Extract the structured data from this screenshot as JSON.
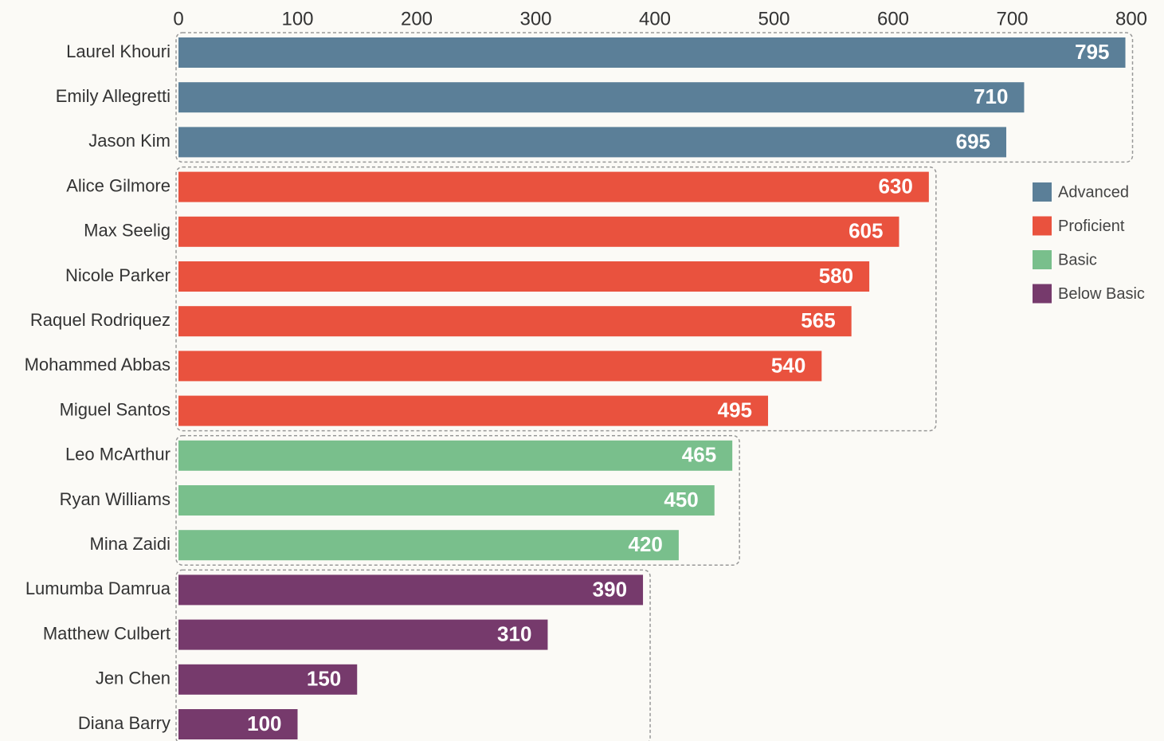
{
  "chart_data": {
    "type": "hbar",
    "categories": [
      "Laurel Khouri",
      "Emily Allegretti",
      "Jason Kim",
      "Alice Gilmore",
      "Max Seelig",
      "Nicole Parker",
      "Raquel Rodriquez",
      "Mohammed Abbas",
      "Miguel Santos",
      "Leo McArthur",
      "Ryan Williams",
      "Mina Zaidi",
      "Lumumba Damrua",
      "Matthew Culbert",
      "Jen Chen",
      "Diana Barry"
    ],
    "series": [
      {
        "name": "Advanced",
        "color": "#5b7f98",
        "values": [
          795,
          710,
          695,
          null,
          null,
          null,
          null,
          null,
          null,
          null,
          null,
          null,
          null,
          null,
          null,
          null
        ]
      },
      {
        "name": "Proficient",
        "color": "#e9523e",
        "values": [
          null,
          null,
          null,
          630,
          605,
          580,
          565,
          540,
          495,
          null,
          null,
          null,
          null,
          null,
          null,
          null
        ]
      },
      {
        "name": "Basic",
        "color": "#79bf8c",
        "values": [
          null,
          null,
          null,
          null,
          null,
          null,
          null,
          null,
          null,
          465,
          450,
          420,
          null,
          null,
          null,
          null
        ]
      },
      {
        "name": "Below Basic",
        "color": "#763a6c",
        "values": [
          null,
          null,
          null,
          null,
          null,
          null,
          null,
          null,
          null,
          null,
          null,
          null,
          390,
          310,
          150,
          100
        ]
      }
    ],
    "xlim": [
      0,
      800
    ],
    "xticks": [
      0,
      100,
      200,
      300,
      400,
      500,
      600,
      700,
      800
    ],
    "legend": "right"
  }
}
